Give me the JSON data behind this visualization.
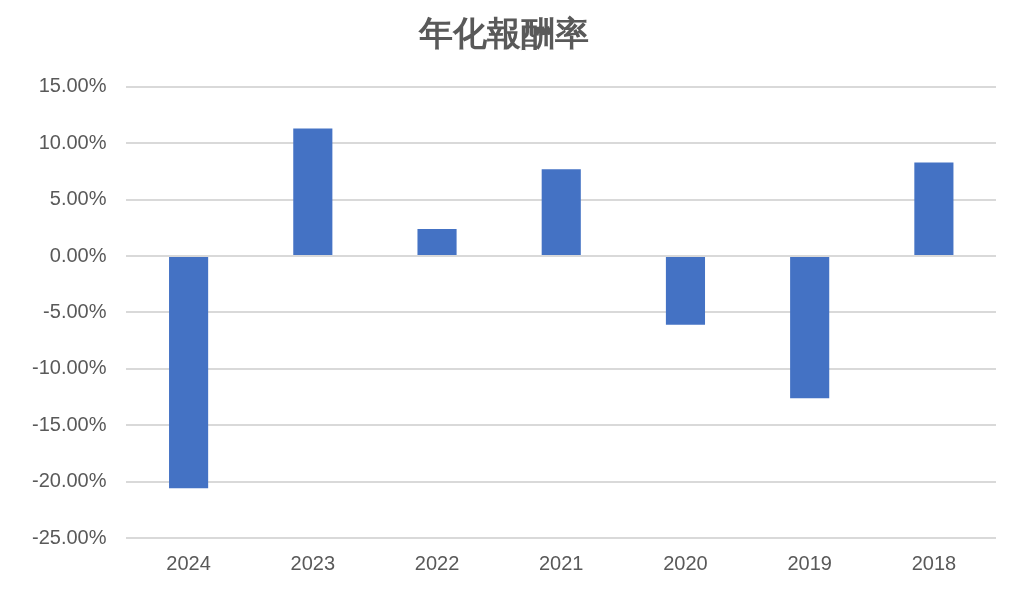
{
  "chart_data": {
    "type": "bar",
    "title": "年化報酬率",
    "categories": [
      "2024",
      "2023",
      "2022",
      "2021",
      "2020",
      "2019",
      "2018"
    ],
    "values": [
      -20.6,
      11.3,
      2.4,
      7.7,
      -6.1,
      -12.6,
      8.3
    ],
    "color": "#4472c4",
    "ylim": [
      -25,
      15
    ],
    "yticks": [
      {
        "value": -25,
        "label": "-25.00%"
      },
      {
        "value": -20,
        "label": "-20.00%"
      },
      {
        "value": -15,
        "label": "-15.00%"
      },
      {
        "value": -10,
        "label": "-10.00%"
      },
      {
        "value": -5,
        "label": "-5.00%"
      },
      {
        "value": 0,
        "label": "0.00%"
      },
      {
        "value": 5,
        "label": "5.00%"
      },
      {
        "value": 10,
        "label": "10.00%"
      },
      {
        "value": 15,
        "label": "15.00%"
      }
    ],
    "grid": "y",
    "legend": false
  }
}
